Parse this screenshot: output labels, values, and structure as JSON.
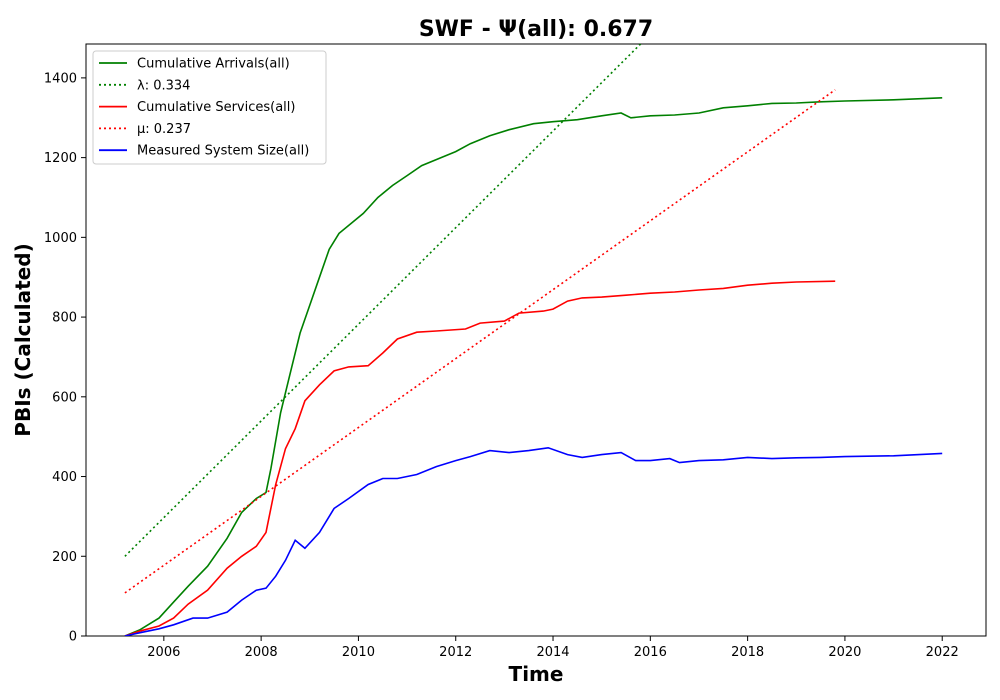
{
  "chart_data": {
    "type": "line",
    "title": "SWF -  Ψ(all): 0.677",
    "xlabel": "Time",
    "ylabel": "PBIs (Calculated)",
    "xlim": [
      2004.4,
      2022.9
    ],
    "ylim": [
      0,
      1485
    ],
    "x_ticks": [
      2006,
      2008,
      2010,
      2012,
      2014,
      2016,
      2018,
      2020,
      2022
    ],
    "y_ticks": [
      0,
      200,
      400,
      600,
      800,
      1000,
      1200,
      1400
    ],
    "grid": false,
    "legend_position": "top-left",
    "series": [
      {
        "name": "Cumulative Arrivals(all)",
        "color": "#008000",
        "style": "solid",
        "points": [
          [
            2005.2,
            0
          ],
          [
            2005.5,
            15
          ],
          [
            2005.9,
            45
          ],
          [
            2006.2,
            85
          ],
          [
            2006.5,
            125
          ],
          [
            2006.9,
            175
          ],
          [
            2007.3,
            245
          ],
          [
            2007.6,
            310
          ],
          [
            2007.9,
            345
          ],
          [
            2008.1,
            360
          ],
          [
            2008.2,
            420
          ],
          [
            2008.4,
            560
          ],
          [
            2008.6,
            660
          ],
          [
            2008.8,
            760
          ],
          [
            2009.0,
            830
          ],
          [
            2009.2,
            900
          ],
          [
            2009.4,
            970
          ],
          [
            2009.6,
            1010
          ],
          [
            2009.9,
            1040
          ],
          [
            2010.1,
            1060
          ],
          [
            2010.4,
            1100
          ],
          [
            2010.7,
            1130
          ],
          [
            2011.0,
            1155
          ],
          [
            2011.3,
            1180
          ],
          [
            2011.7,
            1200
          ],
          [
            2012.0,
            1215
          ],
          [
            2012.3,
            1235
          ],
          [
            2012.7,
            1255
          ],
          [
            2013.1,
            1270
          ],
          [
            2013.6,
            1285
          ],
          [
            2014.0,
            1290
          ],
          [
            2014.5,
            1295
          ],
          [
            2015.0,
            1305
          ],
          [
            2015.4,
            1312
          ],
          [
            2015.6,
            1300
          ],
          [
            2016.0,
            1305
          ],
          [
            2016.5,
            1307
          ],
          [
            2017.0,
            1312
          ],
          [
            2017.5,
            1325
          ],
          [
            2018.0,
            1330
          ],
          [
            2018.5,
            1336
          ],
          [
            2019.0,
            1337
          ],
          [
            2019.5,
            1340
          ],
          [
            2020.0,
            1342
          ],
          [
            2021.0,
            1345
          ],
          [
            2022.0,
            1350
          ]
        ]
      },
      {
        "name": "λ: 0.334",
        "color": "#008000",
        "style": "dotted",
        "points": [
          [
            2005.2,
            200
          ],
          [
            2015.8,
            1485
          ]
        ]
      },
      {
        "name": "Cumulative Services(all)",
        "color": "#ff0000",
        "style": "solid",
        "points": [
          [
            2005.2,
            0
          ],
          [
            2005.5,
            12
          ],
          [
            2005.9,
            25
          ],
          [
            2006.2,
            45
          ],
          [
            2006.5,
            80
          ],
          [
            2006.9,
            115
          ],
          [
            2007.3,
            170
          ],
          [
            2007.6,
            200
          ],
          [
            2007.9,
            225
          ],
          [
            2008.1,
            260
          ],
          [
            2008.3,
            380
          ],
          [
            2008.5,
            470
          ],
          [
            2008.7,
            520
          ],
          [
            2008.9,
            590
          ],
          [
            2009.2,
            630
          ],
          [
            2009.5,
            665
          ],
          [
            2009.8,
            675
          ],
          [
            2010.2,
            678
          ],
          [
            2010.5,
            710
          ],
          [
            2010.8,
            745
          ],
          [
            2011.2,
            762
          ],
          [
            2011.6,
            765
          ],
          [
            2012.2,
            770
          ],
          [
            2012.5,
            785
          ],
          [
            2013.0,
            790
          ],
          [
            2013.3,
            810
          ],
          [
            2013.8,
            815
          ],
          [
            2014.0,
            820
          ],
          [
            2014.3,
            840
          ],
          [
            2014.6,
            848
          ],
          [
            2015.0,
            850
          ],
          [
            2015.5,
            855
          ],
          [
            2016.0,
            860
          ],
          [
            2016.5,
            863
          ],
          [
            2017.0,
            868
          ],
          [
            2017.5,
            872
          ],
          [
            2018.0,
            880
          ],
          [
            2018.5,
            885
          ],
          [
            2019.0,
            888
          ],
          [
            2019.8,
            890
          ]
        ]
      },
      {
        "name": "μ: 0.237",
        "color": "#ff0000",
        "style": "dotted",
        "points": [
          [
            2005.2,
            108
          ],
          [
            2019.8,
            1370
          ]
        ]
      },
      {
        "name": "Measured System Size(all)",
        "color": "#0000ff",
        "style": "solid",
        "points": [
          [
            2005.2,
            0
          ],
          [
            2005.5,
            8
          ],
          [
            2005.9,
            18
          ],
          [
            2006.2,
            28
          ],
          [
            2006.6,
            45
          ],
          [
            2006.9,
            45
          ],
          [
            2007.3,
            60
          ],
          [
            2007.6,
            90
          ],
          [
            2007.9,
            115
          ],
          [
            2008.1,
            120
          ],
          [
            2008.3,
            150
          ],
          [
            2008.5,
            190
          ],
          [
            2008.7,
            240
          ],
          [
            2008.9,
            220
          ],
          [
            2009.2,
            260
          ],
          [
            2009.5,
            320
          ],
          [
            2009.8,
            345
          ],
          [
            2010.2,
            380
          ],
          [
            2010.5,
            395
          ],
          [
            2010.8,
            395
          ],
          [
            2011.2,
            405
          ],
          [
            2011.6,
            425
          ],
          [
            2012.0,
            440
          ],
          [
            2012.3,
            450
          ],
          [
            2012.7,
            465
          ],
          [
            2013.1,
            460
          ],
          [
            2013.5,
            465
          ],
          [
            2013.9,
            472
          ],
          [
            2014.3,
            455
          ],
          [
            2014.6,
            448
          ],
          [
            2015.0,
            455
          ],
          [
            2015.4,
            460
          ],
          [
            2015.7,
            440
          ],
          [
            2016.0,
            440
          ],
          [
            2016.4,
            445
          ],
          [
            2016.6,
            435
          ],
          [
            2017.0,
            440
          ],
          [
            2017.5,
            442
          ],
          [
            2018.0,
            448
          ],
          [
            2018.5,
            445
          ],
          [
            2019.0,
            447
          ],
          [
            2019.5,
            448
          ],
          [
            2020.0,
            450
          ],
          [
            2021.0,
            452
          ],
          [
            2022.0,
            458
          ]
        ]
      }
    ]
  }
}
